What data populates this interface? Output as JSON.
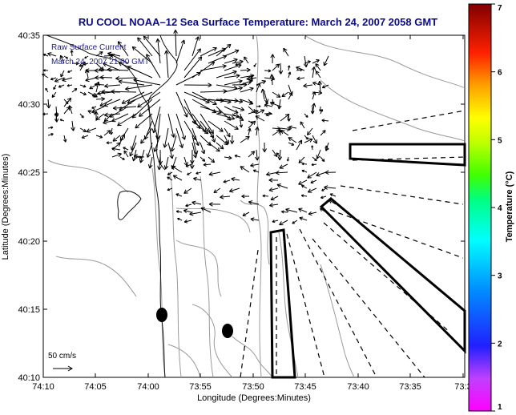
{
  "title": "RU COOL  NOAA–12  Sea Surface Temperature:  March 24, 2007 2058 GMT",
  "map": {
    "xlabel": "Longitude (Degrees:Minutes)",
    "ylabel": "Latitude (Degrees:Minutes)",
    "x_ticks": [
      "74:10",
      "74:05",
      "74:00",
      "73:55",
      "73:50",
      "73:45",
      "73:40",
      "73:35",
      "73:3"
    ],
    "y_ticks": [
      "40:35",
      "40:30",
      "40:25",
      "40:20",
      "40:15",
      "40:10"
    ],
    "legend_line1": "Raw Surface Current",
    "legend_line2": "March 24, 2007 21:00 GMT",
    "scale_label": "50 cm/s",
    "colors": {
      "frame": "#000000",
      "title": "#0b0b8c",
      "legend": "#1a1aa0",
      "contour": "#9a9a9a"
    }
  },
  "colorbar": {
    "label": "Temperature (°C)",
    "ticks": [
      "1",
      "2",
      "3",
      "4",
      "5",
      "6",
      "7"
    ],
    "min": 1,
    "max": 7
  }
}
